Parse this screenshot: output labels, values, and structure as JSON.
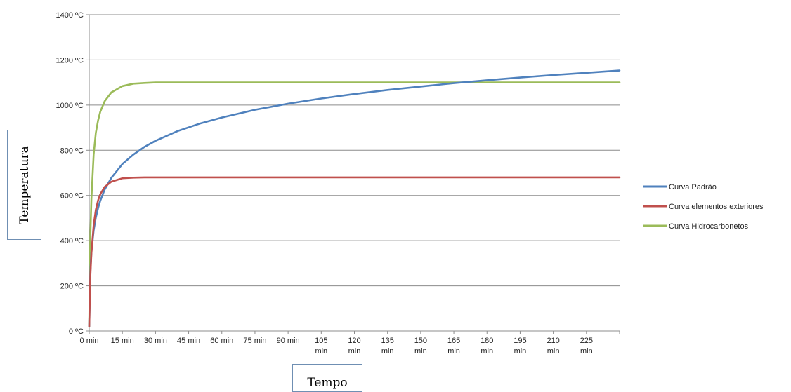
{
  "chart_data": {
    "type": "line",
    "xlabel": "Tempo",
    "ylabel": "Temperatura",
    "x_tick_labels": [
      "0 min",
      "15 min",
      "30 min",
      "45 min",
      "60 min",
      "75 min",
      "90 min",
      "105 min",
      "120 min",
      "135 min",
      "150 min",
      "165 min",
      "180 min",
      "195 min",
      "210 min",
      "225 min"
    ],
    "y_tick_labels": [
      "0 ºC",
      "200 ºC",
      "400 ºC",
      "600 ºC",
      "800 ºC",
      "1000 ºC",
      "1200 ºC",
      "1400 ºC"
    ],
    "xlim": [
      0,
      240
    ],
    "ylim": [
      0,
      1400
    ],
    "grid": "horizontal",
    "legend_position": "right",
    "x": [
      0,
      0.5,
      1,
      2,
      3,
      4,
      5,
      7,
      10,
      15,
      20,
      25,
      30,
      40,
      50,
      60,
      75,
      90,
      105,
      120,
      135,
      150,
      165,
      180,
      195,
      210,
      225,
      240
    ],
    "series": [
      {
        "name": "Curva Padrão",
        "color": "#4f81bd",
        "values": [
          20,
          261,
          349,
          445,
          502,
          544,
          576,
          626,
          678,
          739,
          781,
          815,
          842,
          885,
          918,
          945,
          979,
          1006,
          1029,
          1049,
          1067,
          1082,
          1097,
          1110,
          1122,
          1133,
          1143,
          1153
        ]
      },
      {
        "name": "Curva elementos exteriores",
        "color": "#c0504d",
        "values": [
          20,
          242,
          343,
          468,
          536,
          578,
          605,
          638,
          661,
          676,
          679,
          680,
          680,
          680,
          680,
          680,
          680,
          680,
          680,
          680,
          680,
          680,
          680,
          680,
          680,
          680,
          680,
          680
        ]
      },
      {
        "name": "Curva Hidrocarbonetos",
        "color": "#9bbb59",
        "values": [
          20,
          420,
          584,
          781,
          877,
          932,
          970,
          1017,
          1056,
          1084,
          1095,
          1098,
          1100,
          1100,
          1100,
          1100,
          1100,
          1100,
          1100,
          1100,
          1100,
          1100,
          1100,
          1100,
          1100,
          1100,
          1100,
          1100
        ]
      }
    ]
  }
}
